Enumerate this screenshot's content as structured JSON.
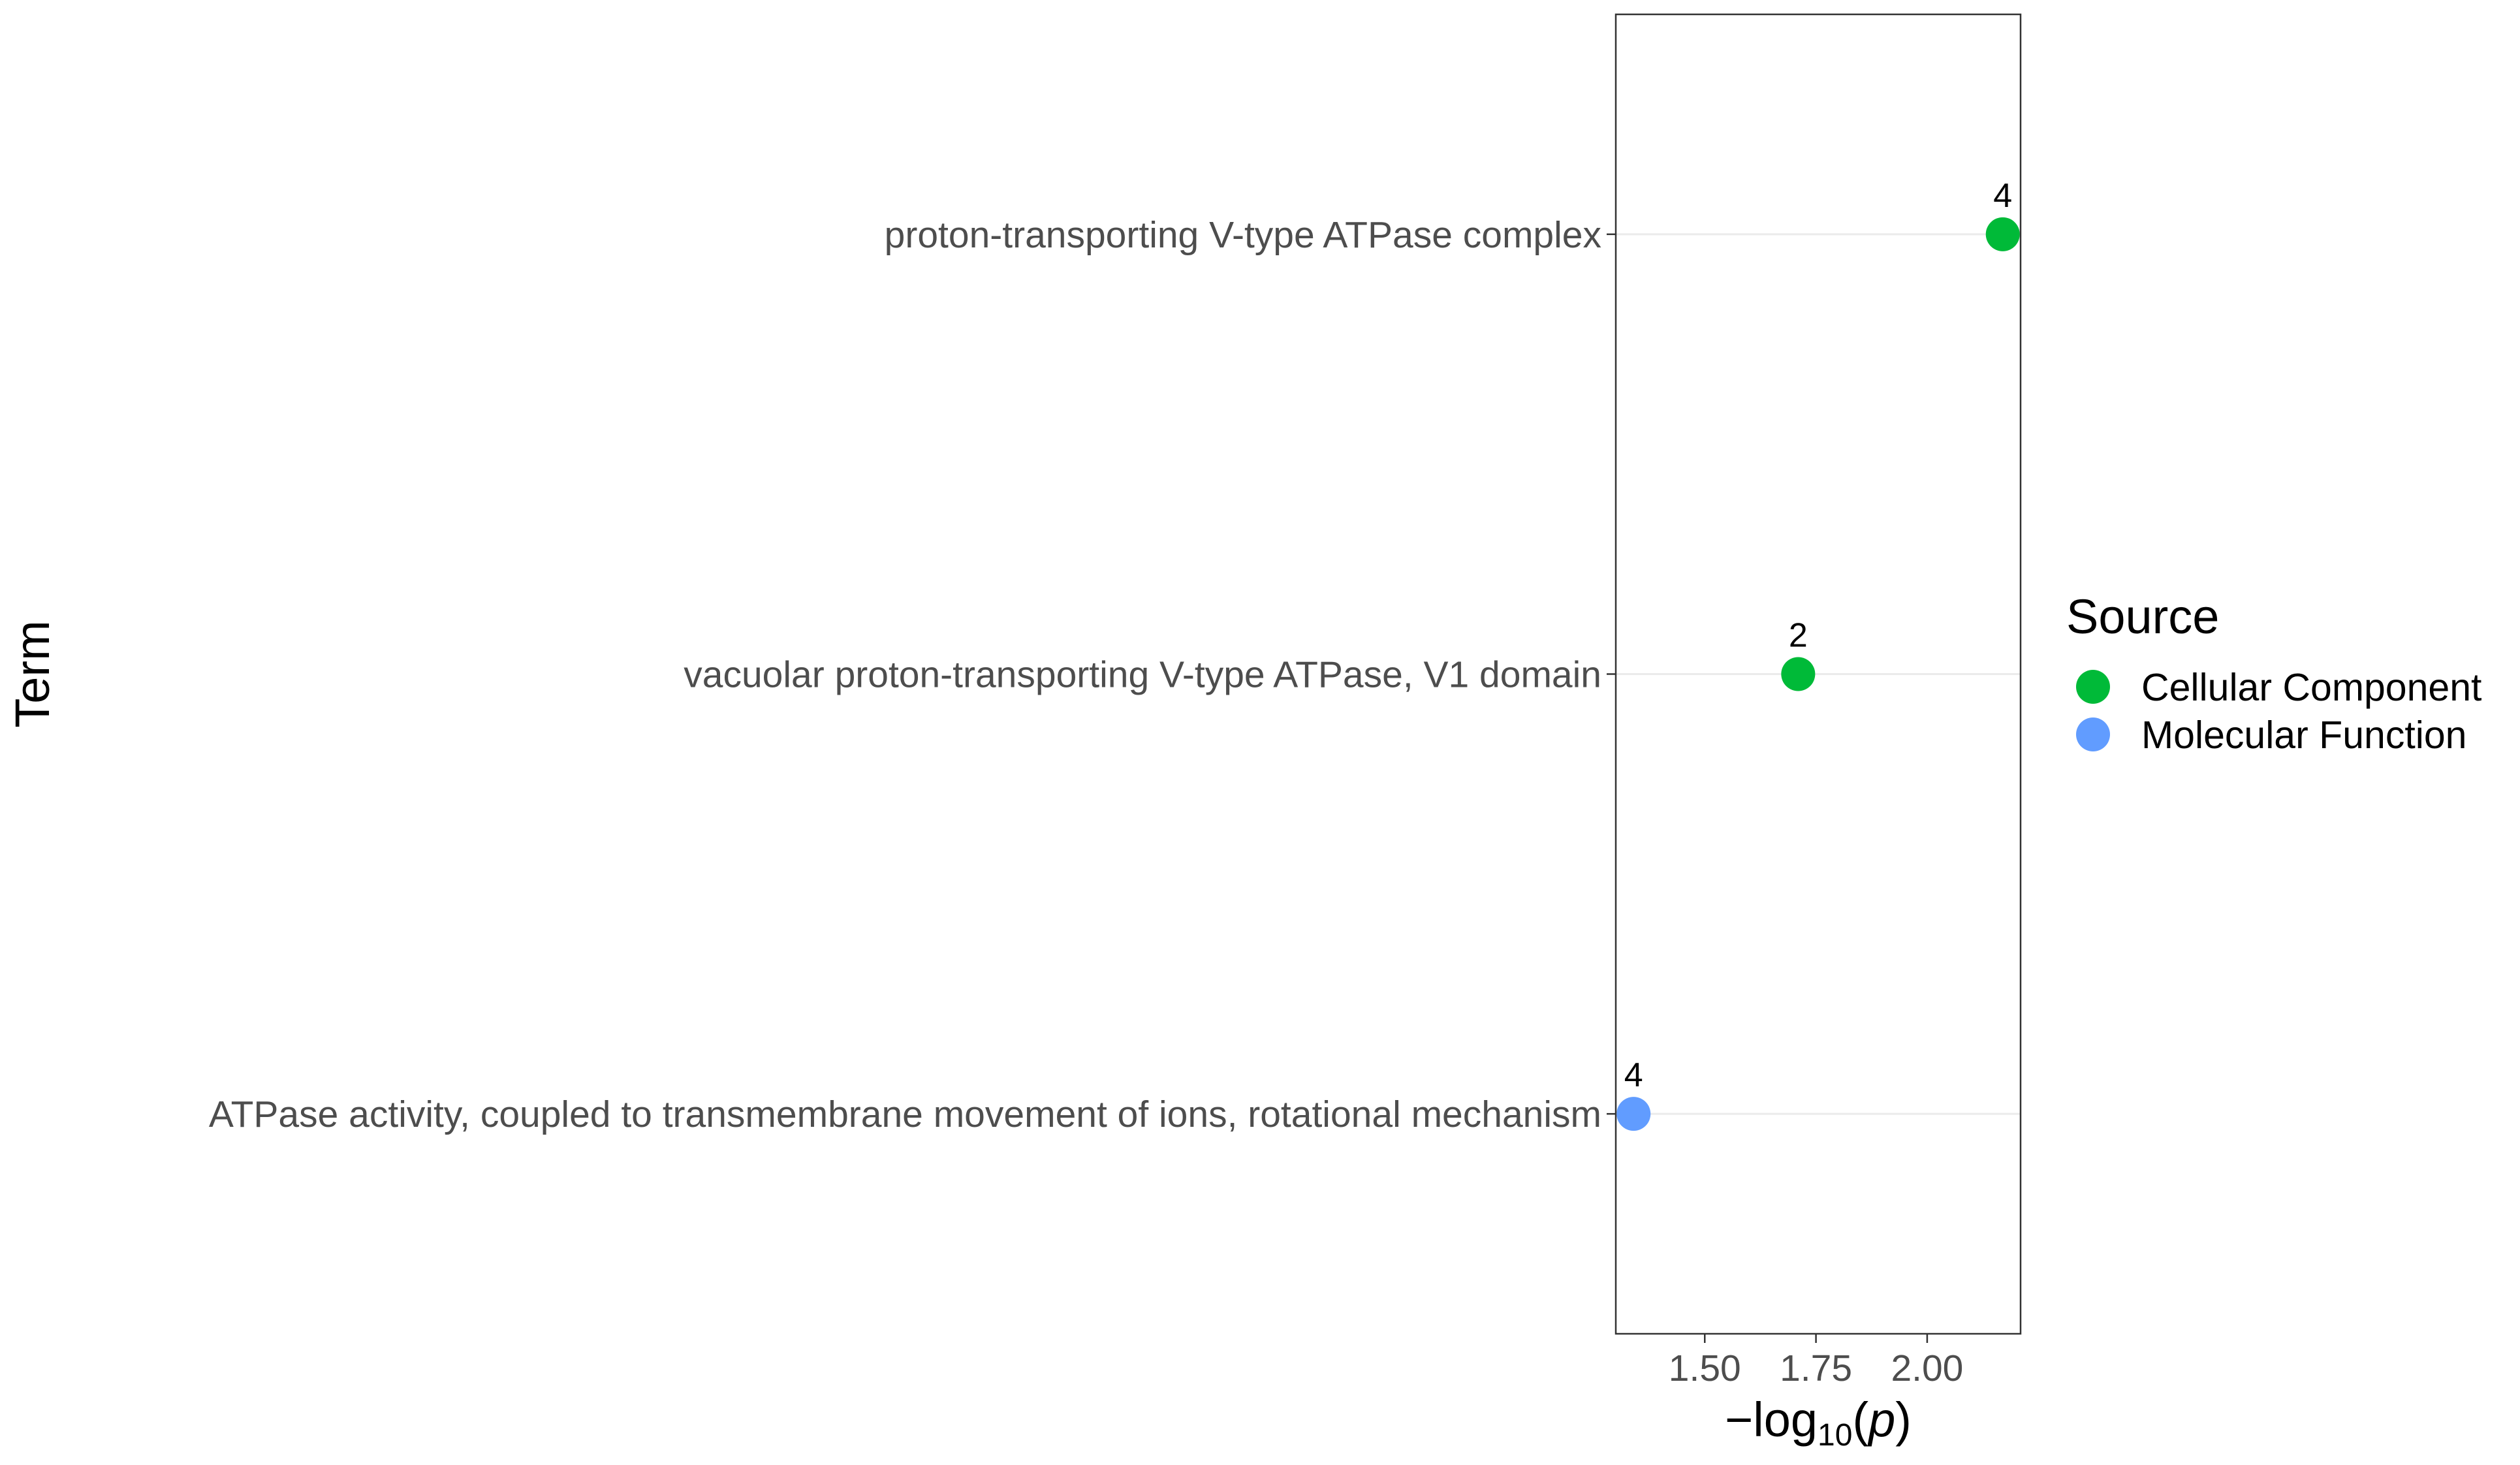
{
  "chart_data": {
    "type": "scatter",
    "xlabel": "−log10(p)",
    "ylabel": "Term",
    "xlim": [
      1.3,
      2.21
    ],
    "x_ticks": [
      "1.50",
      "1.75",
      "2.00"
    ],
    "x_tick_values": [
      1.5,
      1.75,
      2.0
    ],
    "categories": [
      "proton-transporting V-type ATPase complex",
      "vacuolar proton-transporting V-type ATPase, V1 domain",
      "ATPase activity, coupled to transmembrane movement of ions, rotational mechanism"
    ],
    "points": [
      {
        "term": "proton-transporting V-type ATPase complex",
        "x": 2.17,
        "label": "4",
        "source": "Cellular Component"
      },
      {
        "term": "vacuolar proton-transporting V-type ATPase, V1 domain",
        "x": 1.71,
        "label": "2",
        "source": "Cellular Component"
      },
      {
        "term": "ATPase activity, coupled to transmembrane movement of ions, rotational mechanism",
        "x": 1.34,
        "label": "4",
        "source": "Molecular Function"
      }
    ],
    "legend": {
      "title": "Source",
      "position": "right",
      "entries": [
        {
          "name": "Cellular Component",
          "color": "#00BA38"
        },
        {
          "name": "Molecular Function",
          "color": "#619CFF"
        }
      ]
    },
    "grid": "horizontal major lines only",
    "panel_border": true
  }
}
